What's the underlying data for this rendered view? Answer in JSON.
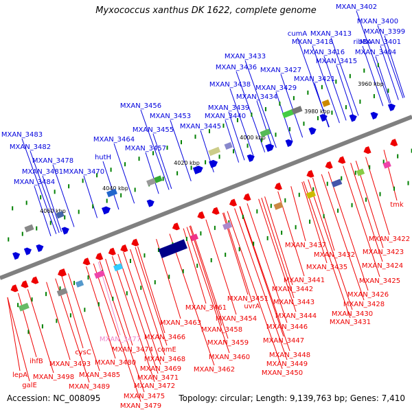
{
  "title": "Myxococcus xanthus DK 1622, complete genome",
  "footer": {
    "accession": "Accession: NC_008095",
    "topology": "Topology: circular; Length: 9,139,763 bp; Genes: 7,410"
  },
  "colors": {
    "forward": "#0000dd",
    "reverse": "#ee0000",
    "highlight": "#ee88cc",
    "axis": "#808080",
    "tick": "#008000"
  },
  "scale_ticks": [
    "3960 kbp",
    "3980 kbp",
    "4000 kbp",
    "4020 kbp",
    "4040 kbp",
    "4060 kbp"
  ],
  "forward_genes": [
    "MXAN_3402",
    "MXAN_3400",
    "MXAN_3399",
    "MXAN_3401",
    "MXAN_3404",
    "cumA",
    "MXAN_3413",
    "MXAN_3418",
    "ribBA",
    "MXAN_3416",
    "MXAN_3415",
    "MXAN_3433",
    "MXAN_3436",
    "MXAN_3427",
    "MXAN_3421",
    "MXAN_3438",
    "MXAN_3429",
    "MXAN_3434",
    "MXAN_3456",
    "MXAN_3439",
    "MXAN_3453",
    "MXAN_3440",
    "MXAN_3455",
    "MXAN_3445",
    "MXAN_3464",
    "MXAN_3457",
    "hutH",
    "MXAN_3483",
    "MXAN_3482",
    "MXAN_3478",
    "MXAN_3481",
    "MXAN_3470",
    "MXAN_3484"
  ],
  "reverse_genes": [
    "tmk",
    "MXAN_3422",
    "MXAN_3437",
    "MXAN_3423",
    "MXAN_3432",
    "MXAN_3424",
    "MXAN_3435",
    "MXAN_3425",
    "MXAN_3441",
    "MXAN_3426",
    "MXAN_3442",
    "MXAN_3428",
    "MXAN_3451",
    "MXAN_3443",
    "MXAN_3430",
    "uvrA",
    "MXAN_3431",
    "MXAN_3461",
    "MXAN_3454",
    "MXAN_3444",
    "MXAN_3446",
    "MXAN_3463",
    "MXAN_3458",
    "MXAN_3477",
    "MXAN_3466",
    "MXAN_3447",
    "MXAN_3459",
    "MXAN_3474",
    "comE",
    "MXAN_3448",
    "MXAN_3460",
    "ihfB",
    "cysC",
    "MXAN_3468",
    "MXAN_3449",
    "MXAN_3493",
    "MXAN_3480",
    "MXAN_3469",
    "MXAN_3462",
    "MXAN_3450",
    "lepA",
    "MXAN_3485",
    "MXAN_3471",
    "galE",
    "MXAN_3498",
    "MXAN_3472",
    "MXAN_3489",
    "MXAN_3475",
    "MXAN_3479"
  ],
  "highlighted_gene": "MXAN_3477"
}
